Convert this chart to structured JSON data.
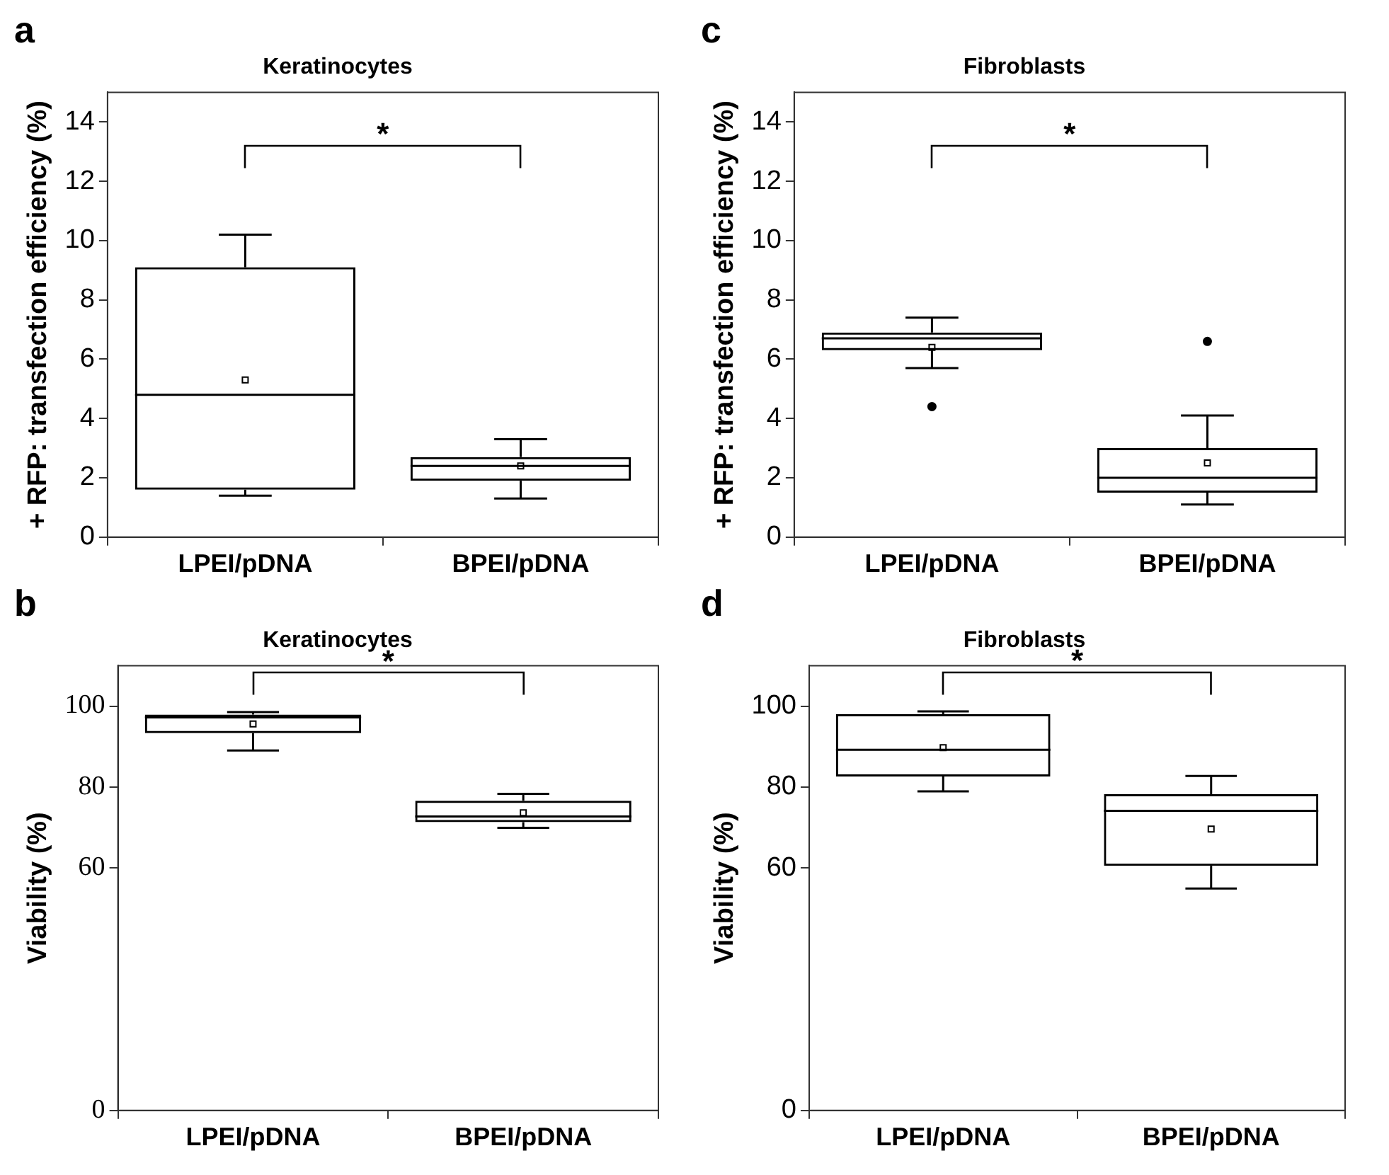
{
  "chart_data": [
    {
      "type": "box",
      "title": "Keratinocytes",
      "ylabel": "+ RFP: transfection efficiency (%)",
      "categories": [
        "LPEI/pDNA",
        "BPEI/pDNA"
      ],
      "boxes": [
        {
          "low": 1.4,
          "q1": 1.6,
          "median": 4.8,
          "q3": 9.1,
          "high": 10.2,
          "mean": 5.3
        },
        {
          "low": 1.3,
          "q1": 1.9,
          "median": 2.4,
          "q3": 2.7,
          "high": 3.3,
          "mean": 2.4
        }
      ],
      "ylim": [
        0,
        15
      ],
      "yticks": [
        0,
        2,
        4,
        6,
        8,
        10,
        12,
        14
      ],
      "annotations": [
        "a",
        "*"
      ]
    },
    {
      "type": "box",
      "title": "Fibroblasts",
      "ylabel": "+ RFP: transfection efficiency (%)",
      "categories": [
        "LPEI/pDNA",
        "BPEI/pDNA"
      ],
      "boxes": [
        {
          "low": 5.7,
          "q1": 6.3,
          "median": 6.7,
          "q3": 6.9,
          "high": 7.4,
          "mean": 6.4,
          "outliers": [
            4.4
          ]
        },
        {
          "low": 1.1,
          "q1": 1.5,
          "median": 2.0,
          "q3": 3.0,
          "high": 4.1,
          "mean": 2.5,
          "outliers": [
            6.6
          ]
        }
      ],
      "ylim": [
        0,
        15
      ],
      "yticks": [
        0,
        2,
        4,
        6,
        8,
        10,
        12,
        14
      ],
      "annotations": [
        "c",
        "*"
      ]
    },
    {
      "type": "box",
      "title": "Keratinocytes",
      "ylabel": "Viability (%)",
      "categories": [
        "LPEI/pDNA",
        "BPEI/pDNA"
      ],
      "boxes": [
        {
          "low": 89,
          "q1": 93.3,
          "median": 97.2,
          "q3": 97.9,
          "high": 98.5,
          "mean": 95.6
        },
        {
          "low": 69.9,
          "q1": 71.3,
          "median": 72.7,
          "q3": 76.6,
          "high": 78.3,
          "mean": 73.6
        }
      ],
      "ylim": [
        0,
        110
      ],
      "yticks": [
        0,
        60,
        80,
        100
      ],
      "annotations": [
        "b",
        "*"
      ]
    },
    {
      "type": "box",
      "title": "Fibroblasts",
      "ylabel": "Viability (%)",
      "categories": [
        "LPEI/pDNA",
        "BPEI/pDNA"
      ],
      "boxes": [
        {
          "low": 78.9,
          "q1": 82.6,
          "median": 89.2,
          "q3": 98,
          "high": 98.7,
          "mean": 89.7
        },
        {
          "low": 54.9,
          "q1": 60.5,
          "median": 74.1,
          "q3": 78.2,
          "high": 82.7,
          "mean": 69.6
        }
      ],
      "ylim": [
        0,
        110
      ],
      "yticks": [
        0,
        60,
        80,
        100
      ],
      "annotations": [
        "d",
        "*"
      ]
    }
  ]
}
